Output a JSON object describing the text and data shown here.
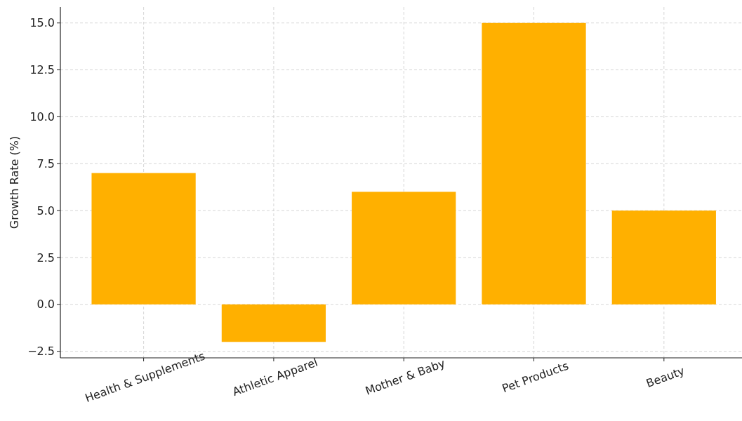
{
  "chart_data": {
    "type": "bar",
    "ylabel": "Growth Rate (%)",
    "categories": [
      "Health & Supplements",
      "Athletic Apparel",
      "Mother & Baby",
      "Pet Products",
      "Beauty"
    ],
    "values": [
      7,
      -2,
      6,
      15,
      5
    ],
    "color": "#ffb000",
    "ylim": [
      -2.85,
      15.85
    ],
    "yticks": [
      {
        "value": -2.5,
        "label": "−2.5"
      },
      {
        "value": 0,
        "label": "0.0"
      },
      {
        "value": 2.5,
        "label": "2.5"
      },
      {
        "value": 5,
        "label": "5.0"
      },
      {
        "value": 7.5,
        "label": "7.5"
      },
      {
        "value": 10,
        "label": "10.0"
      },
      {
        "value": 12.5,
        "label": "12.5"
      },
      {
        "value": 15,
        "label": "15.0"
      }
    ],
    "grid": true
  }
}
